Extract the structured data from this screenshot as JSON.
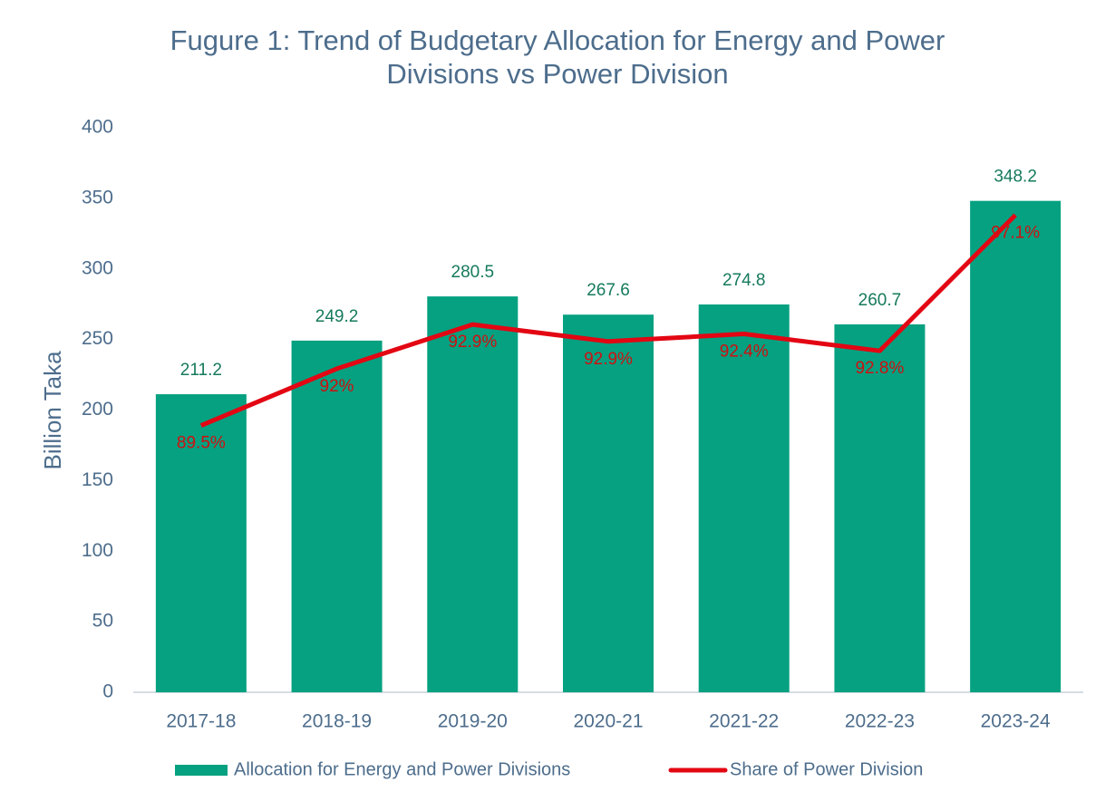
{
  "chart_data": {
    "type": "bar",
    "title": "Fugure 1: Trend of Budgetary Allocation for Energy and Power Divisions vs Power Division",
    "y_label": "Billion Taka",
    "categories": [
      "2017-18",
      "2018-19",
      "2019-20",
      "2020-21",
      "2021-22",
      "2022-23",
      "2023-24"
    ],
    "series": [
      {
        "name": "Allocation for Energy and Power Divisions",
        "type": "bar",
        "color": "#05a181",
        "label_color": "#157a5c",
        "values": [
          211.2,
          249.2,
          280.5,
          267.6,
          274.8,
          260.7,
          348.2
        ]
      },
      {
        "name": "Share of Power Division",
        "type": "line",
        "color": "#e30613",
        "label_color": "#d01010",
        "values": [
          89.5,
          92,
          92.9,
          92.9,
          92.4,
          92.8,
          97.1
        ],
        "value_labels": [
          "89.5%",
          "92%",
          "92.9%",
          "92.9%",
          "92.4%",
          "92.8%",
          "97.1%"
        ]
      }
    ],
    "ylim": [
      0,
      400
    ],
    "yticks": [
      0,
      50,
      100,
      150,
      200,
      250,
      300,
      350,
      400
    ],
    "grid": false,
    "legend": "bottom"
  }
}
